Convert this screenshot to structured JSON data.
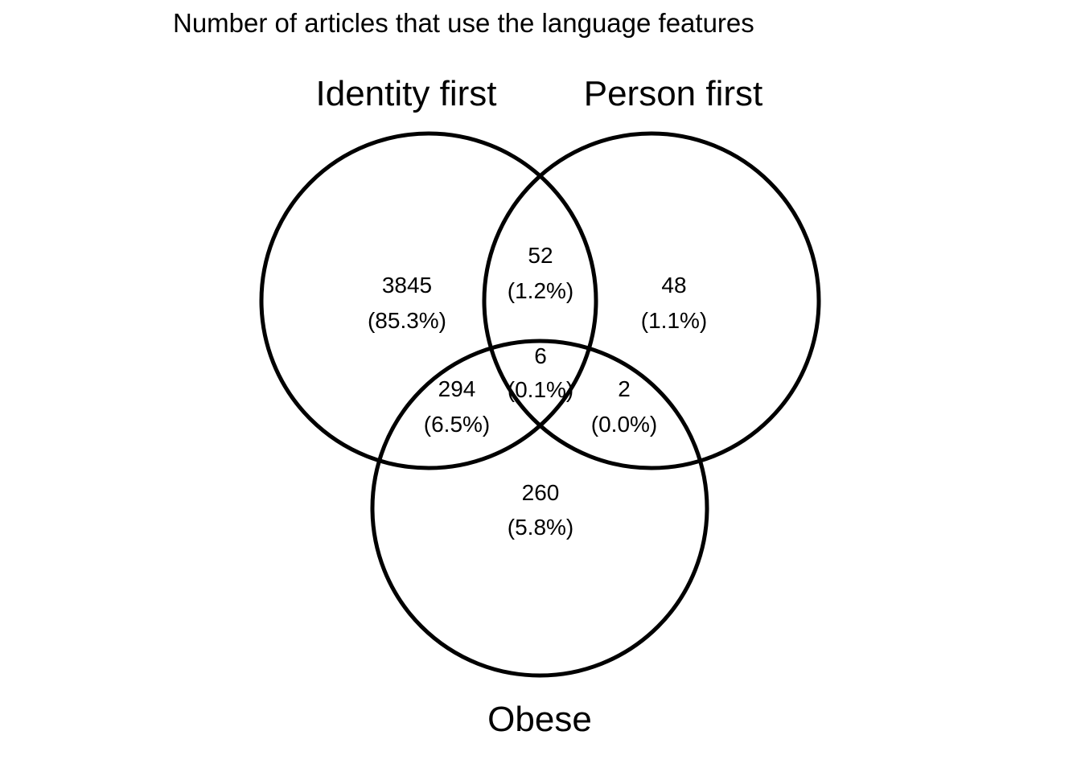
{
  "title": "Number of articles that use the language features",
  "sets": [
    {
      "id": "identity",
      "name": "Identity first"
    },
    {
      "id": "person",
      "name": "Person first"
    },
    {
      "id": "obese",
      "name": "Obese"
    }
  ],
  "regions": [
    {
      "id": "identity-only",
      "sets": [
        "identity"
      ],
      "count": "3845",
      "percent": "(85.3%)"
    },
    {
      "id": "identity-person",
      "sets": [
        "identity",
        "person"
      ],
      "count": "52",
      "percent": "(1.2%)"
    },
    {
      "id": "person-only",
      "sets": [
        "person"
      ],
      "count": "48",
      "percent": "(1.1%)"
    },
    {
      "id": "all-three",
      "sets": [
        "identity",
        "person",
        "obese"
      ],
      "count": "6",
      "percent": "(0.1%)"
    },
    {
      "id": "identity-obese",
      "sets": [
        "identity",
        "obese"
      ],
      "count": "294",
      "percent": "(6.5%)"
    },
    {
      "id": "person-obese",
      "sets": [
        "person",
        "obese"
      ],
      "count": "2",
      "percent": "(0.0%)"
    },
    {
      "id": "obese-only",
      "sets": [
        "obese"
      ],
      "count": "260",
      "percent": "(5.8%)"
    }
  ]
}
